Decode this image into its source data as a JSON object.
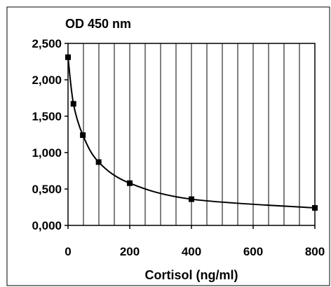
{
  "chart_data": {
    "type": "scatter",
    "ylabel": "OD 450 nm",
    "xlabel": "Cortisol (ng/ml)",
    "xlim": [
      0,
      800
    ],
    "ylim": [
      0,
      2.5
    ],
    "x_ticks": [
      "0",
      "200",
      "400",
      "600",
      "800"
    ],
    "y_ticks": [
      "0,000",
      "0,500",
      "1,000",
      "1,500",
      "2,000",
      "2,500"
    ],
    "grid": "vertical",
    "series": [
      {
        "x": [
          0,
          20,
          50,
          100,
          200,
          400,
          800
        ],
        "y": [
          2.31,
          1.67,
          1.24,
          0.87,
          0.58,
          0.36,
          0.24
        ]
      }
    ],
    "colors": {
      "line": "#000000",
      "marker": "#000000",
      "grid": "#000000",
      "background": "#ffffff"
    }
  }
}
